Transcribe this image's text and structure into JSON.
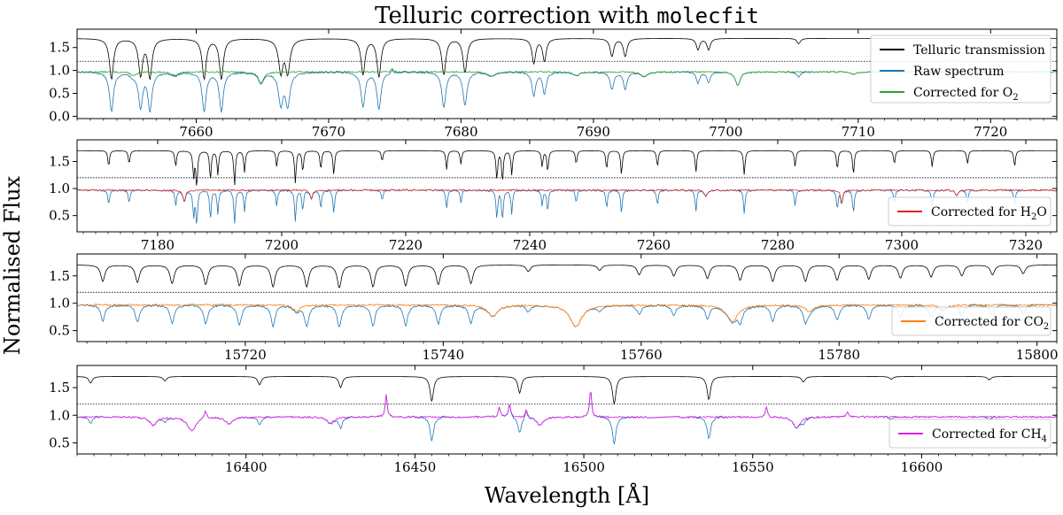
{
  "chart_data": {
    "type": "line",
    "title_prefix": "Telluric correction with ",
    "title_code": "molecfit",
    "xlabel": "Wavelength [Å]",
    "ylabel": "Normalised Flux",
    "colors": {
      "transmission": "#000000",
      "raw": "#1f77b4",
      "o2": "#2ca02c",
      "h2o": "#d62728",
      "co2": "#ff7f0e",
      "ch4": "#e41ae4"
    },
    "panels": [
      {
        "id": "o2",
        "xlim": [
          7651,
          7725
        ],
        "ylim": [
          -0.05,
          1.9
        ],
        "xticks": [
          7660,
          7670,
          7680,
          7690,
          7700,
          7710,
          7720
        ],
        "yticks": [
          "0.0",
          "0.5",
          "1.0",
          "1.5"
        ],
        "ytick_values": [
          0.0,
          0.5,
          1.0,
          1.5
        ],
        "dotted_line": 1.2,
        "transmission_offset": 0.7,
        "raw_lines": [
          [
            7653.6,
            0.9,
            0.18
          ],
          [
            7655.8,
            0.85,
            0.18
          ],
          [
            7656.5,
            0.9,
            0.18
          ],
          [
            7660.6,
            0.9,
            0.18
          ],
          [
            7661.9,
            0.9,
            0.18
          ],
          [
            7666.4,
            0.8,
            0.2
          ],
          [
            7666.9,
            0.8,
            0.2
          ],
          [
            7672.6,
            0.8,
            0.18
          ],
          [
            7673.8,
            0.85,
            0.18
          ],
          [
            7678.7,
            0.8,
            0.18
          ],
          [
            7680.3,
            0.75,
            0.18
          ],
          [
            7685.5,
            0.55,
            0.16
          ],
          [
            7686.3,
            0.5,
            0.16
          ],
          [
            7691.4,
            0.4,
            0.16
          ],
          [
            7692.4,
            0.4,
            0.16
          ],
          [
            7697.9,
            0.25,
            0.15
          ],
          [
            7698.7,
            0.25,
            0.15
          ],
          [
            7705.5,
            0.12,
            0.15
          ]
        ],
        "stellar_lines": [
          [
            7655.3,
            0.08,
            0.3
          ],
          [
            7658.4,
            0.08,
            0.3
          ],
          [
            7664.9,
            0.25,
            0.25
          ],
          [
            7682.3,
            0.1,
            0.3
          ],
          [
            7688.7,
            0.08,
            0.3
          ],
          [
            7693.8,
            0.1,
            0.3
          ],
          [
            7700.9,
            0.3,
            0.22
          ],
          [
            7709.7,
            0.05,
            0.3
          ]
        ],
        "emission_lines": [
          [
            7674.8,
            0.08,
            0.08
          ]
        ],
        "legend": [
          {
            "label": "Telluric transmission",
            "color_key": "transmission"
          },
          {
            "label": "Raw spectrum",
            "color_key": "raw"
          },
          {
            "label": "Corrected for O",
            "sub": "2",
            "color_key": "o2"
          }
        ],
        "corrected_color_key": "o2"
      },
      {
        "id": "h2o",
        "xlim": [
          7167,
          7325
        ],
        "ylim": [
          0.2,
          1.9
        ],
        "xticks": [
          7180,
          7200,
          7220,
          7240,
          7260,
          7280,
          7300,
          7320
        ],
        "yticks": [
          "0.5",
          "1.0",
          "1.5"
        ],
        "ytick_values": [
          0.5,
          1.0,
          1.5
        ],
        "dotted_line": 1.2,
        "transmission_offset": 0.7,
        "raw_lines": [
          [
            7172.1,
            0.3,
            0.15
          ],
          [
            7175.4,
            0.25,
            0.15
          ],
          [
            7182.9,
            0.3,
            0.15
          ],
          [
            7185.8,
            0.5,
            0.15
          ],
          [
            7186.3,
            0.7,
            0.15
          ],
          [
            7188.5,
            0.55,
            0.15
          ],
          [
            7189.7,
            0.45,
            0.15
          ],
          [
            7192.4,
            0.65,
            0.15
          ],
          [
            7194.0,
            0.4,
            0.15
          ],
          [
            7199.2,
            0.3,
            0.15
          ],
          [
            7202.2,
            0.6,
            0.15
          ],
          [
            7203.4,
            0.4,
            0.15
          ],
          [
            7206.3,
            0.35,
            0.15
          ],
          [
            7208.4,
            0.45,
            0.15
          ],
          [
            7216.2,
            0.2,
            0.15
          ],
          [
            7226.6,
            0.35,
            0.15
          ],
          [
            7228.9,
            0.25,
            0.15
          ],
          [
            7234.7,
            0.55,
            0.15
          ],
          [
            7235.6,
            0.6,
            0.15
          ],
          [
            7237.1,
            0.45,
            0.15
          ],
          [
            7242.0,
            0.3,
            0.15
          ],
          [
            7242.9,
            0.4,
            0.15
          ],
          [
            7247.5,
            0.25,
            0.15
          ],
          [
            7252.4,
            0.35,
            0.15
          ],
          [
            7254.8,
            0.45,
            0.15
          ],
          [
            7260.6,
            0.3,
            0.15
          ],
          [
            7266.8,
            0.4,
            0.15
          ],
          [
            7274.6,
            0.45,
            0.15
          ],
          [
            7282.8,
            0.3,
            0.15
          ],
          [
            7289.6,
            0.35,
            0.15
          ],
          [
            7292.2,
            0.45,
            0.15
          ],
          [
            7298.8,
            0.25,
            0.15
          ],
          [
            7304.9,
            0.3,
            0.15
          ],
          [
            7310.6,
            0.25,
            0.15
          ],
          [
            7318.2,
            0.3,
            0.15
          ]
        ],
        "stellar_lines": [
          [
            7184.3,
            0.2,
            0.25
          ],
          [
            7204.8,
            0.15,
            0.25
          ],
          [
            7268.4,
            0.12,
            0.25
          ],
          [
            7290.3,
            0.25,
            0.2
          ],
          [
            7308.8,
            0.1,
            0.25
          ]
        ],
        "emission_lines": [],
        "legend": [
          {
            "label": "Corrected for H",
            "sub": "2",
            "tail": "O",
            "color_key": "h2o"
          }
        ],
        "corrected_color_key": "h2o"
      },
      {
        "id": "co2",
        "xlim": [
          15703,
          15802
        ],
        "ylim": [
          0.3,
          1.9
        ],
        "xticks": [
          15720,
          15740,
          15760,
          15780,
          15800
        ],
        "yticks": [
          "0.5",
          "1.0",
          "1.5"
        ],
        "ytick_values": [
          0.5,
          1.0,
          1.5
        ],
        "dotted_line": 1.2,
        "transmission_offset": 0.7,
        "raw_lines": [
          [
            15705.6,
            0.3,
            0.25
          ],
          [
            15709.1,
            0.32,
            0.25
          ],
          [
            15712.6,
            0.34,
            0.25
          ],
          [
            15716.0,
            0.36,
            0.25
          ],
          [
            15719.4,
            0.38,
            0.25
          ],
          [
            15722.8,
            0.4,
            0.25
          ],
          [
            15726.2,
            0.4,
            0.25
          ],
          [
            15729.5,
            0.42,
            0.25
          ],
          [
            15732.9,
            0.4,
            0.25
          ],
          [
            15736.2,
            0.38,
            0.25
          ],
          [
            15739.5,
            0.36,
            0.25
          ],
          [
            15742.8,
            0.34,
            0.25
          ],
          [
            15748.6,
            0.12,
            0.25
          ],
          [
            15755.8,
            0.1,
            0.25
          ],
          [
            15759.8,
            0.18,
            0.25
          ],
          [
            15763.3,
            0.2,
            0.25
          ],
          [
            15766.7,
            0.25,
            0.25
          ],
          [
            15770.0,
            0.28,
            0.25
          ],
          [
            15773.3,
            0.3,
            0.25
          ],
          [
            15776.6,
            0.3,
            0.25
          ],
          [
            15779.8,
            0.28,
            0.25
          ],
          [
            15783.0,
            0.26,
            0.25
          ],
          [
            15786.2,
            0.24,
            0.25
          ],
          [
            15789.3,
            0.22,
            0.25
          ],
          [
            15792.4,
            0.2,
            0.25
          ],
          [
            15795.5,
            0.18,
            0.25
          ],
          [
            15798.6,
            0.16,
            0.25
          ]
        ],
        "stellar_lines": [
          [
            15725.2,
            0.12,
            0.4
          ],
          [
            15745.0,
            0.2,
            0.6
          ],
          [
            15753.4,
            0.4,
            0.7
          ],
          [
            15769.2,
            0.3,
            0.7
          ],
          [
            15777.0,
            0.12,
            0.5
          ],
          [
            15790.5,
            0.1,
            0.4
          ]
        ],
        "emission_lines": [],
        "legend": [
          {
            "label": "Corrected for CO",
            "sub": "2",
            "color_key": "co2"
          }
        ],
        "corrected_color_key": "co2"
      },
      {
        "id": "ch4",
        "xlim": [
          16350,
          16640
        ],
        "ylim": [
          0.3,
          1.9
        ],
        "xticks": [
          16400,
          16450,
          16500,
          16550,
          16600
        ],
        "yticks": [
          "0.5",
          "1.0",
          "1.5"
        ],
        "ytick_values": [
          0.5,
          1.0,
          1.5
        ],
        "dotted_line": 1.2,
        "transmission_offset": 0.7,
        "raw_lines": [
          [
            16354.0,
            0.12,
            0.6
          ],
          [
            16376.0,
            0.08,
            0.6
          ],
          [
            16404.0,
            0.15,
            0.6
          ],
          [
            16428.0,
            0.2,
            0.6
          ],
          [
            16455.0,
            0.45,
            0.6
          ],
          [
            16481.0,
            0.3,
            0.6
          ],
          [
            16509.0,
            0.5,
            0.6
          ],
          [
            16537.0,
            0.42,
            0.6
          ],
          [
            16565.0,
            0.1,
            0.6
          ],
          [
            16591.0,
            0.05,
            0.6
          ],
          [
            16620.0,
            0.06,
            0.6
          ]
        ],
        "stellar_lines": [
          [
            16372.5,
            0.15,
            1.2
          ],
          [
            16384.0,
            0.25,
            1.5
          ],
          [
            16395.0,
            0.12,
            1.2
          ],
          [
            16425.0,
            0.12,
            1.2
          ],
          [
            16487.0,
            0.15,
            1.2
          ],
          [
            16523.0,
            0.1,
            1.2
          ],
          [
            16563.0,
            0.2,
            1.2
          ]
        ],
        "emission_lines": [
          [
            16388.0,
            0.15,
            0.4
          ],
          [
            16441.5,
            0.4,
            0.35
          ],
          [
            16475.0,
            0.18,
            0.35
          ],
          [
            16478.0,
            0.25,
            0.35
          ],
          [
            16483.0,
            0.15,
            0.35
          ],
          [
            16502.0,
            0.5,
            0.35
          ],
          [
            16554.0,
            0.2,
            0.35
          ],
          [
            16578.0,
            0.1,
            0.35
          ]
        ],
        "gap": [
          16519,
          16528
        ],
        "legend": [
          {
            "label": "Corrected for CH",
            "sub": "4",
            "color_key": "ch4"
          }
        ],
        "corrected_color_key": "ch4"
      }
    ]
  }
}
